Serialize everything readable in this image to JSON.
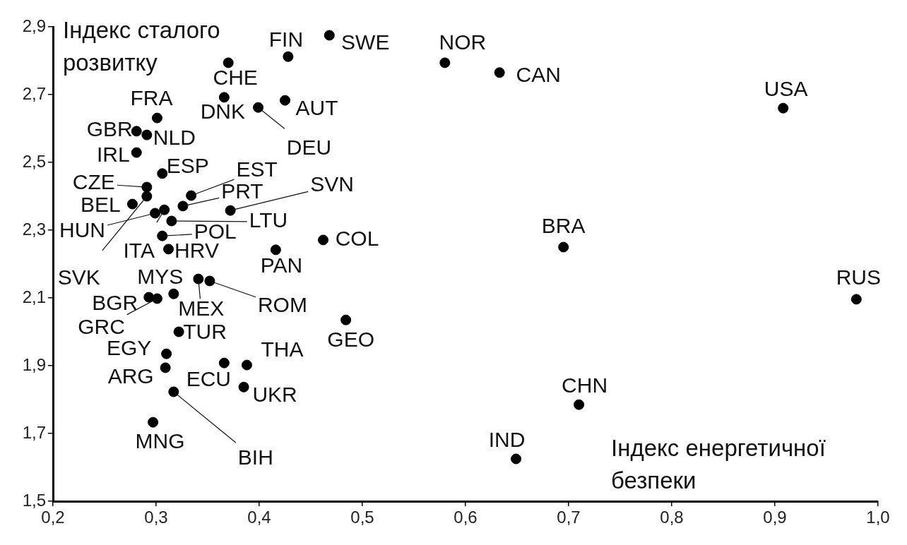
{
  "chart_data": {
    "type": "scatter",
    "xlabel": "Індекс енергетичної безпеки",
    "ylabel": "Індекс сталого розвитку",
    "xlim": [
      0.2,
      1.0
    ],
    "ylim": [
      1.5,
      2.9
    ],
    "xticks": [
      {
        "value": 0.2,
        "label": "0,2"
      },
      {
        "value": 0.3,
        "label": "0,3"
      },
      {
        "value": 0.4,
        "label": "0,4"
      },
      {
        "value": 0.5,
        "label": "0,5"
      },
      {
        "value": 0.6,
        "label": "0,6"
      },
      {
        "value": 0.7,
        "label": "0,7"
      },
      {
        "value": 0.8,
        "label": "0,8"
      },
      {
        "value": 0.9,
        "label": "0,9"
      },
      {
        "value": 1.0,
        "label": "1,0"
      }
    ],
    "yticks": [
      {
        "value": 1.5,
        "label": "1,5"
      },
      {
        "value": 1.7,
        "label": "1,7"
      },
      {
        "value": 1.9,
        "label": "1,9"
      },
      {
        "value": 2.1,
        "label": "2,1"
      },
      {
        "value": 2.3,
        "label": "2,3"
      },
      {
        "value": 2.5,
        "label": "2,5"
      },
      {
        "value": 2.7,
        "label": "2,7"
      },
      {
        "value": 2.9,
        "label": "2,9"
      }
    ],
    "grid": false,
    "legend": false,
    "marker": "circle",
    "series": [
      {
        "color": "#000000",
        "x": [
          0.468,
          0.428,
          0.58,
          0.633,
          0.908,
          0.37,
          0.366,
          0.425,
          0.399,
          0.301,
          0.281,
          0.291,
          0.281,
          0.306,
          0.291,
          0.291,
          0.277,
          0.334,
          0.326,
          0.372,
          0.299,
          0.308,
          0.315,
          0.306,
          0.312,
          0.416,
          0.462,
          0.317,
          0.341,
          0.352,
          0.293,
          0.301,
          0.322,
          0.484,
          0.31,
          0.309,
          0.366,
          0.388,
          0.385,
          0.317,
          0.297,
          0.695,
          0.979,
          0.71,
          0.649
        ],
        "values": [
          2.875,
          2.812,
          2.794,
          2.765,
          2.66,
          2.794,
          2.692,
          2.683,
          2.662,
          2.631,
          2.592,
          2.581,
          2.529,
          2.467,
          2.427,
          2.4,
          2.377,
          2.402,
          2.371,
          2.358,
          2.35,
          2.36,
          2.327,
          2.283,
          2.244,
          2.242,
          2.271,
          2.112,
          2.156,
          2.15,
          2.102,
          2.098,
          2.0,
          2.035,
          1.935,
          1.894,
          1.908,
          1.902,
          1.837,
          1.823,
          1.733,
          2.25,
          2.096,
          1.785,
          1.625
        ]
      }
    ],
    "annotations": [
      {
        "text": "SWE",
        "x": 0.468,
        "y": 2.875
      },
      {
        "text": "FIN",
        "x": 0.428,
        "y": 2.812
      },
      {
        "text": "NOR",
        "x": 0.58,
        "y": 2.794
      },
      {
        "text": "CAN",
        "x": 0.633,
        "y": 2.765
      },
      {
        "text": "USA",
        "x": 0.908,
        "y": 2.66
      },
      {
        "text": "CHE",
        "x": 0.37,
        "y": 2.794
      },
      {
        "text": "DNK",
        "x": 0.366,
        "y": 2.692
      },
      {
        "text": "AUT",
        "x": 0.425,
        "y": 2.683
      },
      {
        "text": "DEU",
        "x": 0.399,
        "y": 2.662
      },
      {
        "text": "FRA",
        "x": 0.301,
        "y": 2.631
      },
      {
        "text": "GBR",
        "x": 0.281,
        "y": 2.592
      },
      {
        "text": "NLD",
        "x": 0.291,
        "y": 2.581
      },
      {
        "text": "IRL",
        "x": 0.281,
        "y": 2.529
      },
      {
        "text": "ESP",
        "x": 0.306,
        "y": 2.467
      },
      {
        "text": "CZE",
        "x": 0.291,
        "y": 2.427
      },
      {
        "text": "SVK",
        "x": 0.291,
        "y": 2.4
      },
      {
        "text": "BEL",
        "x": 0.277,
        "y": 2.377
      },
      {
        "text": "EST",
        "x": 0.334,
        "y": 2.402
      },
      {
        "text": "PRT",
        "x": 0.326,
        "y": 2.371
      },
      {
        "text": "SVN",
        "x": 0.372,
        "y": 2.358
      },
      {
        "text": "HUN",
        "x": 0.299,
        "y": 2.35
      },
      {
        "text": "ITA",
        "x": 0.308,
        "y": 2.36
      },
      {
        "text": "LTU",
        "x": 0.315,
        "y": 2.327
      },
      {
        "text": "POL",
        "x": 0.306,
        "y": 2.283
      },
      {
        "text": "HRV",
        "x": 0.312,
        "y": 2.244
      },
      {
        "text": "PAN",
        "x": 0.416,
        "y": 2.242
      },
      {
        "text": "COL",
        "x": 0.462,
        "y": 2.271
      },
      {
        "text": "MYS",
        "x": 0.317,
        "y": 2.112
      },
      {
        "text": "MEX",
        "x": 0.341,
        "y": 2.156
      },
      {
        "text": "ROM",
        "x": 0.352,
        "y": 2.15
      },
      {
        "text": "BGR",
        "x": 0.293,
        "y": 2.102
      },
      {
        "text": "GRC",
        "x": 0.301,
        "y": 2.098
      },
      {
        "text": "TUR",
        "x": 0.322,
        "y": 2.0
      },
      {
        "text": "GEO",
        "x": 0.484,
        "y": 2.035
      },
      {
        "text": "EGY",
        "x": 0.31,
        "y": 1.935
      },
      {
        "text": "ARG",
        "x": 0.309,
        "y": 1.894
      },
      {
        "text": "ECU",
        "x": 0.366,
        "y": 1.908
      },
      {
        "text": "THA",
        "x": 0.388,
        "y": 1.902
      },
      {
        "text": "UKR",
        "x": 0.385,
        "y": 1.837
      },
      {
        "text": "BIH",
        "x": 0.317,
        "y": 1.823
      },
      {
        "text": "MNG",
        "x": 0.297,
        "y": 1.733
      },
      {
        "text": "BRA",
        "x": 0.695,
        "y": 2.25
      },
      {
        "text": "RUS",
        "x": 0.979,
        "y": 2.096
      },
      {
        "text": "CHN",
        "x": 0.71,
        "y": 1.785
      },
      {
        "text": "IND",
        "x": 0.649,
        "y": 1.625
      }
    ]
  }
}
